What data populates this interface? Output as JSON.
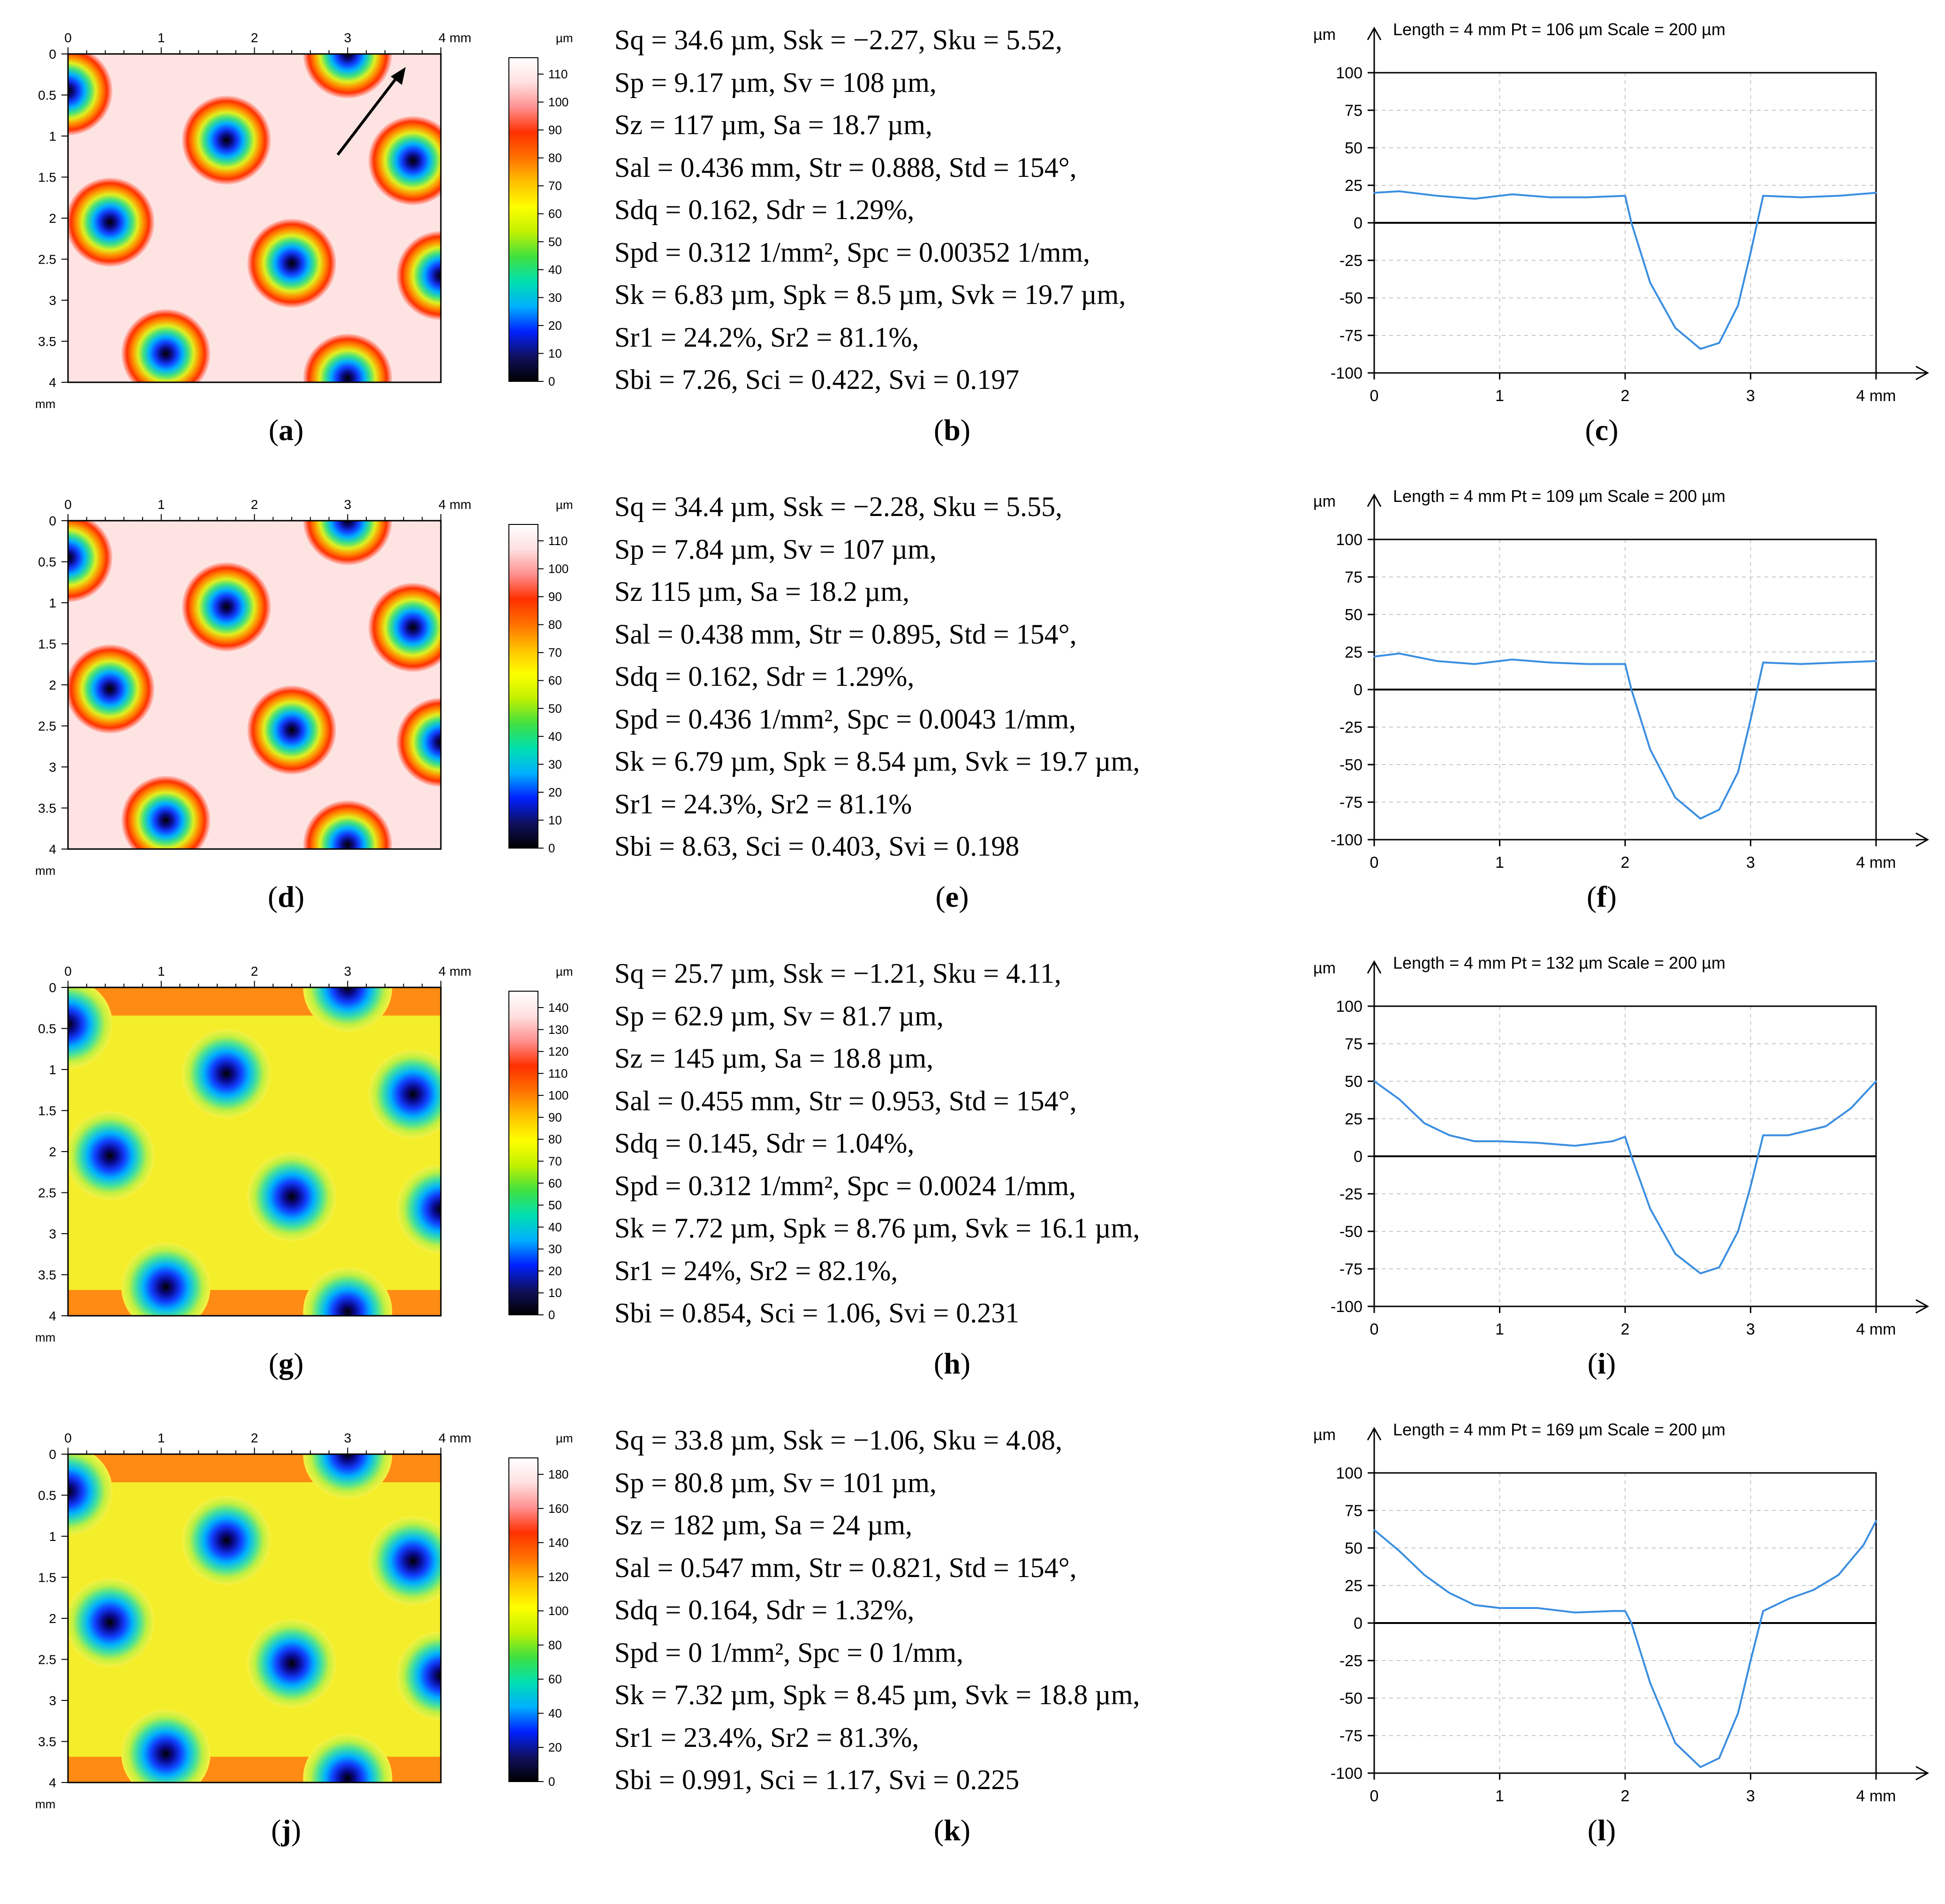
{
  "colors": {
    "gradient_a": [
      "#000000",
      "#101060",
      "#0020ff",
      "#00b0ff",
      "#00e0b0",
      "#40e040",
      "#c0f000",
      "#ffff00",
      "#ffc000",
      "#ff7000",
      "#ff3000",
      "#ff9090",
      "#ffe0e0",
      "#ffffff"
    ],
    "profile_line": "#3a8ee0",
    "grid": "#c8c8c8"
  },
  "panels": [
    {
      "map": {
        "axis_ticks": [
          "0",
          "1",
          "2",
          "3",
          "4 mm"
        ],
        "y_ticks": [
          "0",
          "0.5",
          "1",
          "1.5",
          "2",
          "2.5",
          "3",
          "3.5",
          "4"
        ],
        "y_unit": "mm",
        "colorbar_unit": "µm",
        "colorbar_ticks": [
          "110",
          "100",
          "90",
          "80",
          "70",
          "60",
          "50",
          "40",
          "30",
          "20",
          "10",
          "0"
        ],
        "caption": "a"
      },
      "stats": {
        "lines": [
          "Sq = 34.6 µm, Ssk = −2.27, Sku = 5.52,",
          "Sp = 9.17 µm, Sv = 108 µm,",
          "Sz = 117 µm, Sa = 18.7 µm,",
          "Sal = 0.436 mm, Str = 0.888, Std = 154°,",
          "Sdq = 0.162, Sdr = 1.29%,",
          "Spd = 0.312 1/mm², Spc = 0.00352 1/mm,",
          "Sk = 6.83 µm, Spk = 8.5 µm, Svk = 19.7 µm,",
          "Sr1 = 24.2%, Sr2 = 81.1%,",
          "Sbi = 7.26, Sci = 0.422, Svi = 0.197"
        ],
        "caption": "b"
      },
      "profile": {
        "header": "Length = 4 mm   Pt = 106 µm   Scale = 200 µm",
        "y_unit": "µm",
        "caption": "c"
      }
    },
    {
      "map": {
        "axis_ticks": [
          "0",
          "1",
          "2",
          "3",
          "4 mm"
        ],
        "y_ticks": [
          "0",
          "0.5",
          "1",
          "1.5",
          "2",
          "2.5",
          "3",
          "3.5",
          "4"
        ],
        "y_unit": "mm",
        "colorbar_unit": "µm",
        "colorbar_ticks": [
          "110",
          "100",
          "90",
          "80",
          "70",
          "60",
          "50",
          "40",
          "30",
          "20",
          "10",
          "0"
        ],
        "caption": "d"
      },
      "stats": {
        "lines": [
          "Sq = 34.4 µm, Ssk = −2.28, Sku = 5.55,",
          "Sp = 7.84 µm, Sv = 107 µm,",
          "Sz 115 µm, Sa = 18.2 µm,",
          "Sal = 0.438 mm, Str = 0.895, Std = 154°,",
          "Sdq = 0.162, Sdr = 1.29%,",
          "Spd = 0.436 1/mm², Spc = 0.0043 1/mm,",
          "Sk = 6.79 µm, Spk = 8.54 µm, Svk = 19.7 µm,",
          "Sr1 = 24.3%, Sr2 = 81.1%",
          "Sbi = 8.63, Sci = 0.403, Svi = 0.198"
        ],
        "caption": "e"
      },
      "profile": {
        "header": "Length = 4 mm   Pt = 109 µm   Scale = 200 µm",
        "y_unit": "µm",
        "caption": "f"
      }
    },
    {
      "map": {
        "axis_ticks": [
          "0",
          "1",
          "2",
          "3",
          "4 mm"
        ],
        "y_ticks": [
          "0",
          "0.5",
          "1",
          "1.5",
          "2",
          "2.5",
          "3",
          "3.5",
          "4"
        ],
        "y_unit": "mm",
        "colorbar_unit": "µm",
        "colorbar_ticks": [
          "140",
          "130",
          "120",
          "110",
          "100",
          "90",
          "80",
          "70",
          "60",
          "50",
          "40",
          "30",
          "20",
          "10",
          "0"
        ],
        "caption": "g"
      },
      "stats": {
        "lines": [
          "Sq = 25.7 µm, Ssk = −1.21, Sku = 4.11,",
          "Sp = 62.9 µm, Sv = 81.7 µm,",
          "Sz = 145 µm, Sa = 18.8 µm,",
          "Sal = 0.455 mm, Str = 0.953, Std = 154°,",
          "Sdq = 0.145, Sdr = 1.04%,",
          "Spd = 0.312 1/mm², Spc = 0.0024 1/mm,",
          "Sk = 7.72 µm, Spk = 8.76 µm, Svk = 16.1 µm,",
          "Sr1 = 24%, Sr2 = 82.1%,",
          "Sbi = 0.854, Sci = 1.06, Svi = 0.231"
        ],
        "caption": "h"
      },
      "profile": {
        "header": "Length = 4 mm   Pt = 132 µm   Scale = 200 µm",
        "y_unit": "µm",
        "caption": "i"
      }
    },
    {
      "map": {
        "axis_ticks": [
          "0",
          "1",
          "2",
          "3",
          "4 mm"
        ],
        "y_ticks": [
          "0",
          "0.5",
          "1",
          "1.5",
          "2",
          "2.5",
          "3",
          "3.5",
          "4"
        ],
        "y_unit": "mm",
        "colorbar_unit": "µm",
        "colorbar_ticks": [
          "180",
          "160",
          "140",
          "120",
          "100",
          "80",
          "60",
          "40",
          "20",
          "0"
        ],
        "caption": "j"
      },
      "stats": {
        "lines": [
          "Sq = 33.8 µm, Ssk = −1.06, Sku = 4.08,",
          "Sp = 80.8 µm, Sv = 101 µm,",
          "Sz = 182 µm, Sa = 24 µm,",
          "Sal = 0.547 mm, Str = 0.821, Std = 154°,",
          "Sdq = 0.164, Sdr = 1.32%,",
          "Spd = 0 1/mm², Spc = 0 1/mm,",
          "Sk = 7.32 µm, Spk = 8.45 µm, Svk = 18.8 µm,",
          "Sr1 = 23.4%, Sr2 = 81.3%,",
          "Sbi = 0.991, Sci = 1.17, Svi = 0.225"
        ],
        "caption": "k"
      },
      "profile": {
        "header": "Length = 4 mm   Pt = 169 µm   Scale = 200 µm",
        "y_unit": "µm",
        "caption": "l"
      }
    }
  ],
  "chart_data": [
    {
      "type": "line",
      "title": "Length = 4 mm Pt = 106 µm Scale = 200 µm",
      "xlabel": "mm",
      "ylabel": "µm",
      "x_ticks": [
        "0",
        "1",
        "2",
        "3",
        "4 mm"
      ],
      "y_ticks": [
        "100",
        "75",
        "50",
        "25",
        "0",
        "-25",
        "-50",
        "-75",
        "-100"
      ],
      "xlim": [
        0,
        4
      ],
      "ylim": [
        -100,
        100
      ],
      "x": [
        0,
        0.2,
        0.5,
        0.8,
        1.1,
        1.4,
        1.7,
        2.0,
        2.05,
        2.2,
        2.4,
        2.6,
        2.75,
        2.9,
        3.0,
        3.1,
        3.4,
        3.7,
        4.0
      ],
      "y": [
        20,
        21,
        18,
        16,
        19,
        17,
        17,
        18,
        0,
        -40,
        -70,
        -84,
        -80,
        -55,
        -20,
        18,
        17,
        18,
        20
      ]
    },
    {
      "type": "line",
      "title": "Length = 4 mm Pt = 109 µm Scale = 200 µm",
      "xlabel": "mm",
      "ylabel": "µm",
      "x_ticks": [
        "0",
        "1",
        "2",
        "3",
        "4 mm"
      ],
      "y_ticks": [
        "100",
        "75",
        "50",
        "25",
        "0",
        "-25",
        "-50",
        "-75",
        "-100"
      ],
      "xlim": [
        0,
        4
      ],
      "ylim": [
        -100,
        100
      ],
      "x": [
        0,
        0.2,
        0.5,
        0.8,
        1.1,
        1.4,
        1.7,
        2.0,
        2.05,
        2.2,
        2.4,
        2.6,
        2.75,
        2.9,
        3.0,
        3.1,
        3.4,
        3.7,
        4.0
      ],
      "y": [
        22,
        24,
        19,
        17,
        20,
        18,
        17,
        17,
        0,
        -40,
        -72,
        -86,
        -80,
        -55,
        -20,
        18,
        17,
        18,
        19
      ]
    },
    {
      "type": "line",
      "title": "Length = 4 mm Pt = 132 µm Scale = 200 µm",
      "xlabel": "mm",
      "ylabel": "µm",
      "x_ticks": [
        "0",
        "1",
        "2",
        "3",
        "4 mm"
      ],
      "y_ticks": [
        "100",
        "75",
        "50",
        "25",
        "0",
        "-25",
        "-50",
        "-75",
        "-100"
      ],
      "xlim": [
        0,
        4
      ],
      "ylim": [
        -100,
        100
      ],
      "x": [
        0,
        0.2,
        0.4,
        0.6,
        0.8,
        1.0,
        1.3,
        1.6,
        1.9,
        2.0,
        2.05,
        2.2,
        2.4,
        2.6,
        2.75,
        2.9,
        3.0,
        3.1,
        3.3,
        3.6,
        3.8,
        4.0
      ],
      "y": [
        50,
        38,
        22,
        14,
        10,
        10,
        9,
        7,
        10,
        13,
        0,
        -35,
        -65,
        -78,
        -74,
        -50,
        -20,
        14,
        14,
        20,
        32,
        50
      ]
    },
    {
      "type": "line",
      "title": "Length = 4 mm Pt = 169 µm Scale = 200 µm",
      "xlabel": "mm",
      "ylabel": "µm",
      "x_ticks": [
        "0",
        "1",
        "2",
        "3",
        "4 mm"
      ],
      "y_ticks": [
        "100",
        "75",
        "50",
        "25",
        "0",
        "-25",
        "-50",
        "-75",
        "-100"
      ],
      "xlim": [
        0,
        4
      ],
      "ylim": [
        -100,
        100
      ],
      "x": [
        0,
        0.2,
        0.4,
        0.6,
        0.8,
        1.0,
        1.3,
        1.6,
        1.9,
        2.0,
        2.05,
        2.2,
        2.4,
        2.6,
        2.75,
        2.9,
        3.0,
        3.1,
        3.3,
        3.5,
        3.7,
        3.9,
        4.0
      ],
      "y": [
        62,
        48,
        32,
        20,
        12,
        10,
        10,
        7,
        8,
        8,
        0,
        -40,
        -80,
        -96,
        -90,
        -60,
        -25,
        8,
        16,
        22,
        32,
        52,
        68
      ]
    }
  ]
}
